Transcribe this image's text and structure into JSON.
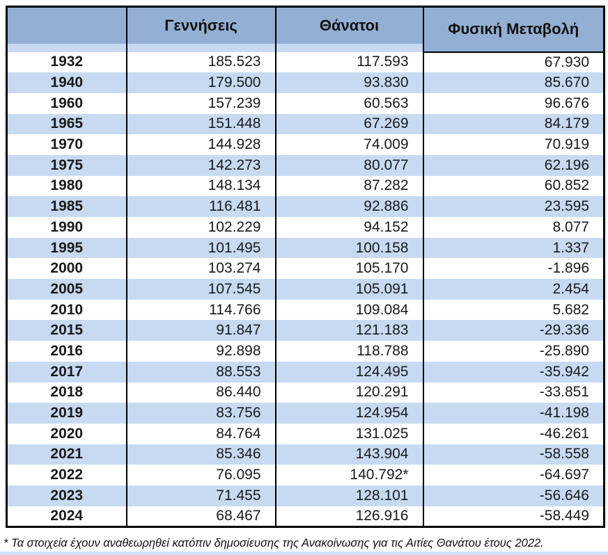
{
  "table": {
    "columns": [
      "",
      "Γεννήσεις",
      "Θάνατοι",
      "Φυσική Μεταβολή"
    ],
    "rows": [
      {
        "year": "1932",
        "births": "185.523",
        "deaths": "117.593",
        "change": "67.930"
      },
      {
        "year": "1940",
        "births": "179.500",
        "deaths": "93.830",
        "change": "85.670"
      },
      {
        "year": "1960",
        "births": "157.239",
        "deaths": "60.563",
        "change": "96.676"
      },
      {
        "year": "1965",
        "births": "151.448",
        "deaths": "67.269",
        "change": "84.179"
      },
      {
        "year": "1970",
        "births": "144.928",
        "deaths": "74.009",
        "change": "70.919"
      },
      {
        "year": "1975",
        "births": "142.273",
        "deaths": "80.077",
        "change": "62.196"
      },
      {
        "year": "1980",
        "births": "148.134",
        "deaths": "87.282",
        "change": "60.852"
      },
      {
        "year": "1985",
        "births": "116.481",
        "deaths": "92.886",
        "change": "23.595"
      },
      {
        "year": "1990",
        "births": "102.229",
        "deaths": "94.152",
        "change": "8.077"
      },
      {
        "year": "1995",
        "births": "101.495",
        "deaths": "100.158",
        "change": "1.337"
      },
      {
        "year": "2000",
        "births": "103.274",
        "deaths": "105.170",
        "change": "-1.896"
      },
      {
        "year": "2005",
        "births": "107.545",
        "deaths": "105.091",
        "change": "2.454"
      },
      {
        "year": "2010",
        "births": "114.766",
        "deaths": "109.084",
        "change": "5.682"
      },
      {
        "year": "2015",
        "births": "91.847",
        "deaths": "121.183",
        "change": "-29.336"
      },
      {
        "year": "2016",
        "births": "92.898",
        "deaths": "118.788",
        "change": "-25.890"
      },
      {
        "year": "2017",
        "births": "88.553",
        "deaths": "124.495",
        "change": "-35.942"
      },
      {
        "year": "2018",
        "births": "86.440",
        "deaths": "120.291",
        "change": "-33.851"
      },
      {
        "year": "2019",
        "births": "83.756",
        "deaths": "124.954",
        "change": "-41.198"
      },
      {
        "year": "2020",
        "births": "84.764",
        "deaths": "131.025",
        "change": "-46.261"
      },
      {
        "year": "2021",
        "births": "85.346",
        "deaths": "143.904",
        "change": "-58.558"
      },
      {
        "year": "2022",
        "births": "76.095",
        "deaths": "140.792*",
        "change": "-64.697"
      },
      {
        "year": "2023",
        "births": "71.455",
        "deaths": "128.101",
        "change": "-56.646"
      },
      {
        "year": "2024",
        "births": "68.467",
        "deaths": "126.916",
        "change": "-58.449"
      }
    ]
  },
  "footnote": "* Τα στοιχεία έχουν αναθεωρηθεί κατόπιν δημοσίευσης της Ανακοίνωσης για τις Αιτίες Θανάτου έτους 2022.",
  "colors": {
    "header_bg": "#93AFD3",
    "row_alt_bg": "#C7DAF2",
    "border": "#000000",
    "text": "#1A1A1A"
  },
  "chart_data": {
    "type": "table",
    "title": "",
    "categories": [
      1932,
      1940,
      1960,
      1965,
      1970,
      1975,
      1980,
      1985,
      1990,
      1995,
      2000,
      2005,
      2010,
      2015,
      2016,
      2017,
      2018,
      2019,
      2020,
      2021,
      2022,
      2023,
      2024
    ],
    "series": [
      {
        "name": "Γεννήσεις",
        "values": [
          185523,
          179500,
          157239,
          151448,
          144928,
          142273,
          148134,
          116481,
          102229,
          101495,
          103274,
          107545,
          114766,
          91847,
          92898,
          88553,
          86440,
          83756,
          84764,
          85346,
          76095,
          71455,
          68467
        ]
      },
      {
        "name": "Θάνατοι",
        "values": [
          117593,
          93830,
          60563,
          67269,
          74009,
          80077,
          87282,
          92886,
          94152,
          100158,
          105170,
          105091,
          109084,
          121183,
          118788,
          124495,
          120291,
          124954,
          131025,
          143904,
          140792,
          128101,
          126916
        ]
      },
      {
        "name": "Φυσική Μεταβολή",
        "values": [
          67930,
          85670,
          96676,
          84179,
          70919,
          62196,
          60852,
          23595,
          8077,
          1337,
          -1896,
          2454,
          5682,
          -29336,
          -25890,
          -35942,
          -33851,
          -41198,
          -46261,
          -58558,
          -64697,
          -56646,
          -58449
        ]
      }
    ],
    "note": "* Τα στοιχεία έχουν αναθεωρηθεί κατόπιν δημοσίευσης της Ανακοίνωσης για τις Αιτίες Θανάτου έτους 2022."
  }
}
